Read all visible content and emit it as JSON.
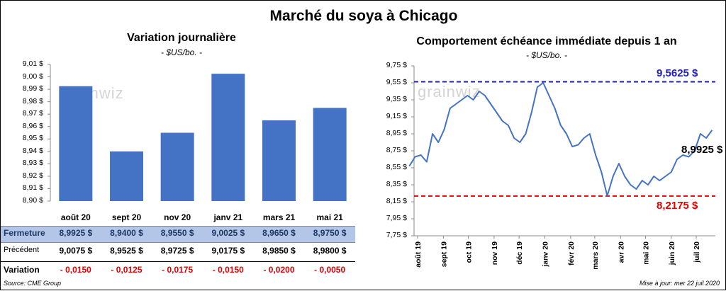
{
  "title": "Marché du soya à Chicago",
  "watermark": "grainwiz",
  "left_panel": {
    "title": "Variation  journalière",
    "unit": "- $US/bo. -",
    "y_ticks": [
      "9,01 $",
      "9,00 $",
      "8,99 $",
      "8,98 $",
      "8,97 $",
      "8,96 $",
      "8,95 $",
      "8,94 $",
      "8,93 $",
      "8,92 $",
      "8,91 $",
      "8,90 $"
    ]
  },
  "right_panel": {
    "title": "Comportement  échéance immédiate depuis 1 an",
    "unit": "- $US/bo. -",
    "y_ticks": [
      "9,75 $",
      "9,55 $",
      "9,35 $",
      "9,15 $",
      "8,95 $",
      "8,75 $",
      "8,55 $",
      "8,35 $",
      "8,15 $",
      "7,95 $",
      "7,75 $"
    ],
    "x_ticks": [
      "août 19",
      "sept 19",
      "oct 19",
      "nov 19",
      "déc 19",
      "janv 20",
      "févr 20",
      "mars 20",
      "avr 20",
      "mai 20",
      "juin 20",
      "juil 20"
    ],
    "high_label": "9,5625 $",
    "low_label": "8,2175 $",
    "last_label": "8,9925 $"
  },
  "table": {
    "columns": [
      "août 20",
      "sept 20",
      "nov 20",
      "janv 21",
      "mars 21",
      "mai 21"
    ],
    "rows": [
      {
        "label": "Fermeture",
        "values": [
          "8,9925  $",
          "8,9400  $",
          "8,9550  $",
          "9,0025  $",
          "8,9650  $",
          "8,9750  $"
        ]
      },
      {
        "label": "Précédent",
        "values": [
          "9,0075  $",
          "8,9525  $",
          "8,9725  $",
          "9,0175  $",
          "8,9850  $",
          "8,9800  $"
        ]
      },
      {
        "label": "Variation",
        "values": [
          "- 0,0150",
          "- 0,0125",
          "- 0,0175",
          "- 0,0150",
          "- 0,0200",
          "- 0,0050"
        ]
      }
    ]
  },
  "footer": {
    "source": "Source: CME Group",
    "updated": "Mise à jour: mer 22 juil 2020"
  },
  "colors": {
    "bar": "#4472C4",
    "line": "#4472C4",
    "high_line": "#1F1FB4",
    "low_line": "#E00000",
    "variation": "#E00000",
    "table_highlight": "#B4C6E7"
  },
  "chart_data": [
    {
      "type": "bar",
      "title": "Variation  journalière",
      "ylabel": "- $US/bo. -",
      "categories": [
        "août 20",
        "sept 20",
        "nov 20",
        "janv 21",
        "mars 21",
        "mai 21"
      ],
      "values": [
        8.9925,
        8.94,
        8.955,
        9.0025,
        8.965,
        8.975
      ],
      "ylim": [
        8.9,
        9.01
      ],
      "grid": false
    },
    {
      "type": "line",
      "title": "Comportement  échéance immédiate depuis 1 an",
      "ylabel": "- $US/bo. -",
      "ylim": [
        7.75,
        9.75
      ],
      "grid": false,
      "x": [
        "2019-07-22",
        "2019-07-29",
        "2019-08-05",
        "2019-08-12",
        "2019-08-19",
        "2019-08-26",
        "2019-09-02",
        "2019-09-09",
        "2019-09-16",
        "2019-09-23",
        "2019-09-30",
        "2019-10-07",
        "2019-10-14",
        "2019-10-21",
        "2019-10-28",
        "2019-11-04",
        "2019-11-11",
        "2019-11-18",
        "2019-11-25",
        "2019-12-02",
        "2019-12-09",
        "2019-12-16",
        "2019-12-23",
        "2019-12-30",
        "2020-01-06",
        "2020-01-13",
        "2020-01-20",
        "2020-01-27",
        "2020-02-03",
        "2020-02-10",
        "2020-02-17",
        "2020-02-24",
        "2020-03-02",
        "2020-03-09",
        "2020-03-16",
        "2020-03-23",
        "2020-03-30",
        "2020-04-06",
        "2020-04-13",
        "2020-04-20",
        "2020-04-27",
        "2020-05-04",
        "2020-05-11",
        "2020-05-18",
        "2020-05-25",
        "2020-06-01",
        "2020-06-08",
        "2020-06-15",
        "2020-06-22",
        "2020-06-29",
        "2020-07-06",
        "2020-07-13",
        "2020-07-20"
      ],
      "series": [
        {
          "values": [
            8.57,
            8.68,
            8.7,
            8.62,
            8.95,
            8.85,
            9.0,
            9.25,
            9.3,
            9.35,
            9.4,
            9.35,
            9.45,
            9.4,
            9.3,
            9.2,
            9.1,
            9.05,
            8.9,
            8.85,
            8.95,
            9.2,
            9.5,
            9.55,
            9.4,
            9.25,
            9.05,
            8.95,
            8.8,
            8.82,
            8.9,
            8.95,
            8.7,
            8.5,
            8.22,
            8.45,
            8.6,
            8.45,
            8.35,
            8.3,
            8.4,
            8.35,
            8.45,
            8.4,
            8.45,
            8.5,
            8.65,
            8.7,
            8.68,
            8.75,
            8.95,
            8.9,
            8.9925
          ]
        }
      ],
      "reference_lines": [
        {
          "label": "9,5625 $",
          "value": 9.5625
        },
        {
          "label": "8,2175 $",
          "value": 8.2175
        }
      ]
    }
  ]
}
